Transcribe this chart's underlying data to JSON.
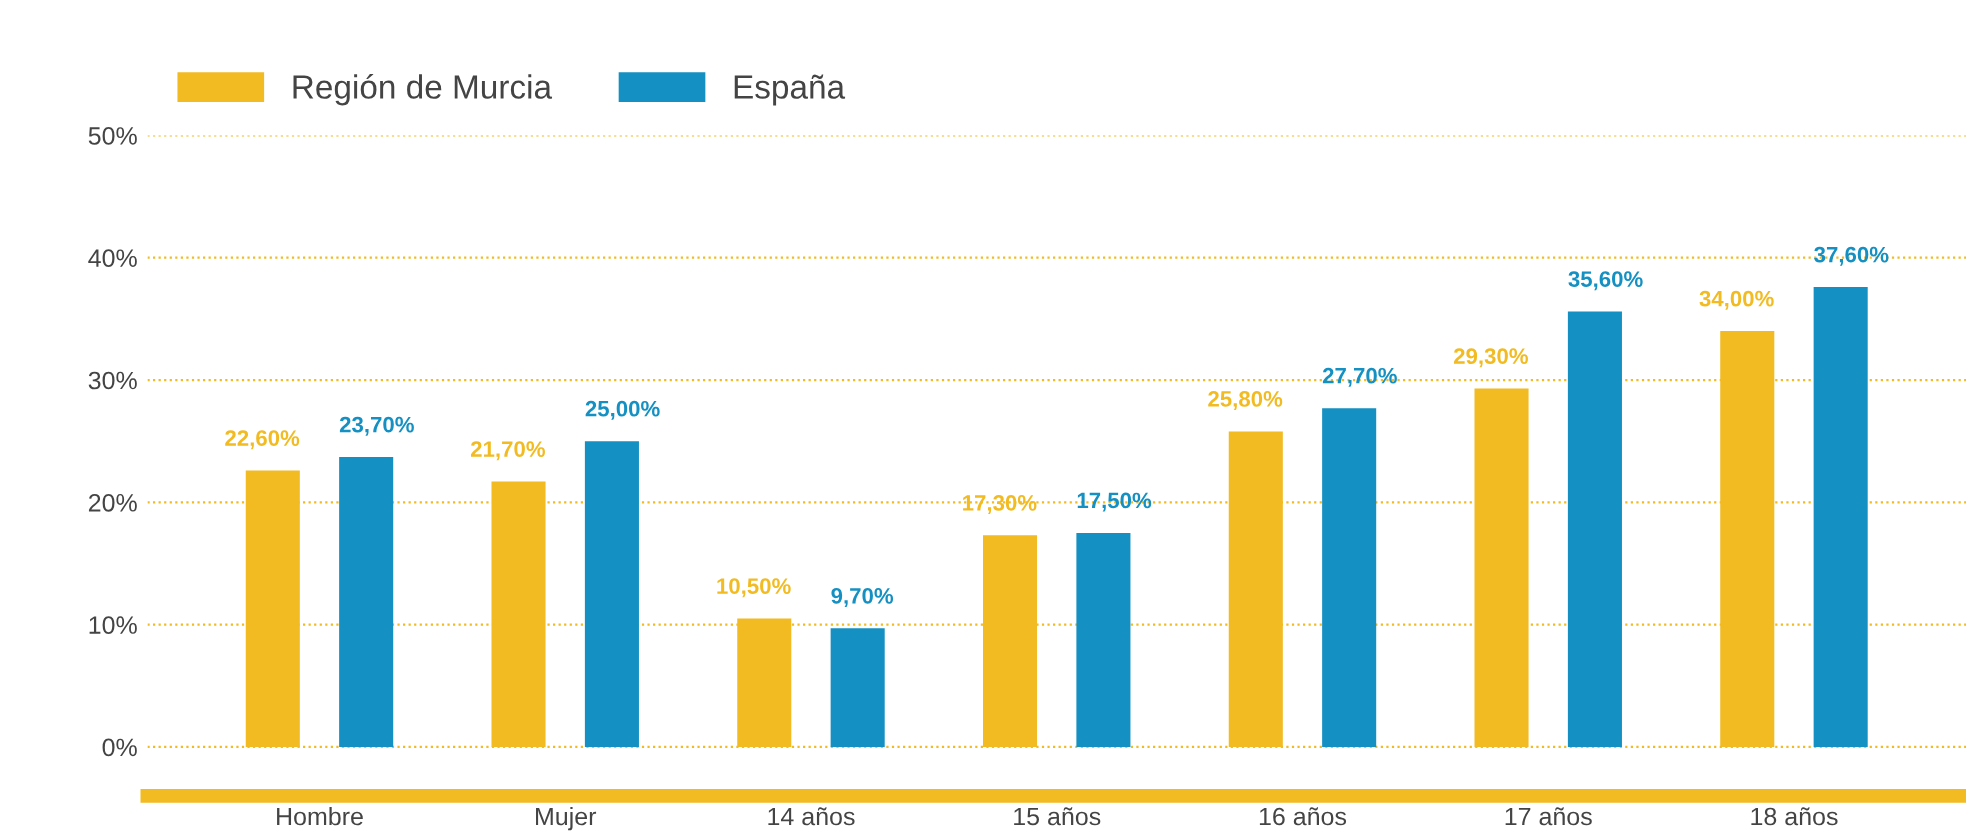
{
  "chart_data": {
    "type": "bar",
    "categories": [
      "Hombre",
      "Mujer",
      "14 años",
      "15 años",
      "16 años",
      "17 años",
      "18 años"
    ],
    "series": [
      {
        "name": "Región de Murcia",
        "color": "#f2bb22",
        "values": [
          22.6,
          21.7,
          10.5,
          17.3,
          25.8,
          29.3,
          34.0
        ],
        "value_labels": [
          "22,60%",
          "21,70%",
          "10,50%",
          "17,30%",
          "25,80%",
          "29,30%",
          "34,00%"
        ]
      },
      {
        "name": "España",
        "color": "#1490c2",
        "values": [
          23.7,
          25.0,
          9.7,
          17.5,
          27.7,
          35.6,
          37.6
        ],
        "value_labels": [
          "23,70%",
          "25,00%",
          "9,70%",
          "17,50%",
          "27,70%",
          "35,60%",
          "37,60%"
        ]
      }
    ],
    "ylim": [
      -4,
      50
    ],
    "yticks": [
      {
        "value": 0,
        "label": "0%"
      },
      {
        "value": 10,
        "label": "10%"
      },
      {
        "value": 20,
        "label": "20%"
      },
      {
        "value": 30,
        "label": "30%"
      },
      {
        "value": 40,
        "label": "40%"
      },
      {
        "value": 50,
        "label": "50%"
      }
    ],
    "grid": "y",
    "legend": "top left"
  }
}
